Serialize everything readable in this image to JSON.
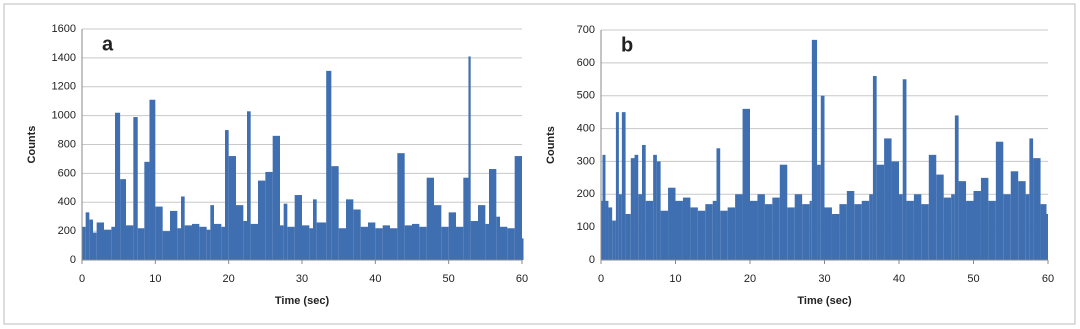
{
  "chart_data": [
    {
      "type": "bar",
      "panel_label": "a",
      "x_label": "Time (sec)",
      "y_label": "Counts",
      "color": "#3f6fb0",
      "grid": true,
      "xlim": [
        0,
        60
      ],
      "xticks": [
        0,
        10,
        20,
        30,
        40,
        50,
        60
      ],
      "ylim": [
        0,
        1600
      ],
      "yticks": [
        0,
        200,
        400,
        600,
        800,
        1000,
        1200,
        1400,
        1600
      ],
      "x": [
        0,
        0.5,
        1,
        1.5,
        2,
        3,
        4,
        4.5,
        5.2,
        6,
        7,
        7.6,
        8.5,
        9.2,
        10,
        11,
        12,
        13,
        13.5,
        14,
        15,
        16,
        17,
        17.5,
        18,
        19,
        19.5,
        20,
        21,
        22,
        22.5,
        23,
        24,
        25,
        26,
        27,
        27.5,
        28,
        29,
        30,
        31,
        31.5,
        32,
        33.3,
        34,
        35,
        36,
        37,
        38,
        39,
        40,
        41,
        42,
        43,
        44,
        45,
        46,
        47,
        48,
        49,
        50,
        51,
        52,
        52.7,
        53,
        54,
        55,
        55.5,
        56.5,
        57,
        58,
        59,
        60
      ],
      "values": [
        230,
        330,
        280,
        190,
        260,
        210,
        230,
        1020,
        560,
        240,
        990,
        220,
        680,
        1110,
        370,
        200,
        340,
        220,
        440,
        240,
        250,
        230,
        210,
        380,
        250,
        230,
        900,
        720,
        380,
        270,
        1030,
        250,
        550,
        610,
        860,
        240,
        390,
        230,
        450,
        240,
        220,
        420,
        260,
        1310,
        650,
        220,
        420,
        350,
        230,
        260,
        220,
        240,
        220,
        740,
        240,
        250,
        230,
        570,
        380,
        230,
        330,
        230,
        570,
        1410,
        270,
        380,
        250,
        630,
        300,
        230,
        220,
        720,
        150
      ]
    },
    {
      "type": "bar",
      "panel_label": "b",
      "x_label": "Time (sec)",
      "y_label": "Counts",
      "color": "#3f6fb0",
      "grid": true,
      "xlim": [
        0,
        60
      ],
      "xticks": [
        0,
        10,
        20,
        30,
        40,
        50,
        60
      ],
      "ylim": [
        0,
        700
      ],
      "yticks": [
        0,
        100,
        200,
        300,
        400,
        500,
        600,
        700
      ],
      "x": [
        0,
        0.2,
        0.6,
        1,
        1.5,
        2,
        2.4,
        2.8,
        3.3,
        4,
        4.5,
        5,
        5.5,
        6,
        7,
        7.5,
        8,
        9,
        10,
        11,
        12,
        13,
        14,
        15,
        15.5,
        16,
        17,
        18,
        19,
        20,
        21,
        22,
        23,
        24,
        25,
        26,
        27,
        28,
        28.3,
        29,
        29.5,
        30,
        31,
        32,
        33,
        34,
        35,
        36,
        36.5,
        37,
        38,
        39,
        40,
        40.5,
        41,
        42,
        43,
        44,
        45,
        46,
        47,
        47.5,
        48,
        49,
        50,
        51,
        52,
        53,
        54,
        55,
        56,
        57,
        57.5,
        58,
        59,
        59.8
      ],
      "values": [
        180,
        320,
        180,
        160,
        120,
        450,
        200,
        450,
        140,
        310,
        320,
        200,
        350,
        180,
        320,
        300,
        150,
        220,
        180,
        190,
        160,
        150,
        170,
        180,
        340,
        150,
        160,
        200,
        460,
        180,
        200,
        170,
        190,
        290,
        160,
        200,
        170,
        180,
        670,
        290,
        500,
        160,
        140,
        170,
        210,
        170,
        180,
        200,
        560,
        290,
        370,
        300,
        200,
        550,
        180,
        200,
        170,
        320,
        260,
        190,
        200,
        440,
        240,
        180,
        210,
        250,
        180,
        360,
        200,
        270,
        240,
        200,
        370,
        310,
        170,
        140
      ]
    }
  ]
}
